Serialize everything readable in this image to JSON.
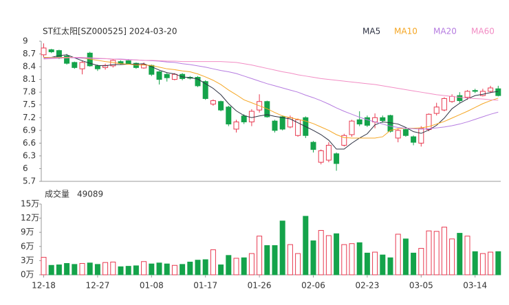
{
  "chart_data": [
    {
      "type": "candlestick",
      "title": "ST红太阳[SZ000525] 2024-03-20",
      "up_color": "#e8384f",
      "down_color": "#14a34a",
      "grid": false,
      "ylim": [
        5.7,
        9
      ],
      "yticks": [
        9,
        8.7,
        8.4,
        8.1,
        7.8,
        7.5,
        7.2,
        6.9,
        6.6,
        6.3,
        6,
        5.7
      ],
      "open": [
        8.68,
        8.8,
        8.78,
        8.65,
        8.5,
        8.35,
        8.72,
        8.42,
        8.38,
        8.42,
        8.52,
        8.54,
        8.48,
        8.37,
        8.43,
        8.28,
        8.22,
        8.1,
        8.22,
        8.15,
        8.15,
        8.05,
        7.52,
        7.58,
        7.45,
        6.93,
        7.24,
        7.1,
        7.38,
        7.58,
        7.12,
        7.22,
        6.98,
        6.78,
        7.2,
        6.62,
        6.15,
        6.2,
        6.35,
        6.55,
        6.8,
        7.15,
        7.2,
        7.1,
        7.2,
        7.25,
        6.72,
        6.92,
        6.75,
        6.6,
        6.92,
        7.3,
        7.38,
        7.58,
        7.72,
        7.68,
        7.84,
        7.72,
        7.82,
        7.88
      ],
      "high": [
        8.95,
        8.82,
        8.8,
        8.7,
        8.52,
        8.55,
        8.75,
        8.45,
        8.47,
        8.58,
        8.55,
        8.58,
        8.5,
        8.5,
        8.45,
        8.3,
        8.25,
        8.25,
        8.25,
        8.18,
        8.18,
        8.08,
        7.63,
        7.6,
        7.48,
        7.15,
        7.28,
        7.4,
        7.75,
        7.6,
        7.15,
        7.25,
        7.25,
        7.18,
        7.23,
        6.65,
        6.45,
        6.62,
        6.38,
        6.82,
        7.15,
        7.35,
        7.25,
        7.3,
        7.25,
        7.27,
        6.95,
        6.95,
        6.78,
        7.0,
        7.3,
        7.55,
        7.68,
        7.75,
        7.8,
        7.85,
        7.88,
        7.88,
        7.95,
        7.95
      ],
      "low": [
        8.62,
        8.72,
        8.58,
        8.45,
        8.35,
        8.22,
        8.4,
        8.3,
        8.33,
        8.38,
        8.45,
        8.45,
        8.35,
        8.35,
        8.18,
        7.98,
        8.05,
        8.08,
        8.08,
        8.1,
        7.92,
        7.62,
        7.48,
        7.35,
        7.0,
        6.85,
        7.05,
        7.0,
        7.32,
        7.2,
        6.85,
        6.9,
        6.95,
        6.75,
        6.72,
        6.38,
        6.1,
        6.15,
        5.95,
        6.52,
        6.75,
        7.0,
        6.98,
        6.95,
        7.08,
        6.85,
        6.62,
        6.75,
        6.55,
        6.52,
        6.88,
        7.25,
        7.35,
        7.55,
        7.55,
        7.62,
        7.78,
        7.7,
        7.78,
        7.7
      ],
      "close": [
        8.84,
        8.75,
        8.6,
        8.48,
        8.38,
        8.5,
        8.42,
        8.35,
        8.43,
        8.55,
        8.48,
        8.47,
        8.38,
        8.45,
        8.22,
        8.1,
        8.14,
        8.22,
        8.12,
        8.13,
        7.95,
        7.65,
        7.6,
        7.38,
        7.05,
        7.1,
        7.1,
        7.35,
        7.58,
        7.22,
        6.9,
        6.93,
        7.2,
        7.15,
        6.78,
        6.45,
        6.42,
        6.55,
        6.12,
        6.78,
        7.12,
        7.05,
        7.02,
        7.2,
        7.13,
        6.88,
        6.9,
        6.78,
        6.62,
        6.95,
        7.28,
        7.45,
        7.65,
        7.7,
        7.6,
        7.82,
        7.82,
        7.82,
        7.9,
        7.72
      ],
      "series": [
        {
          "name": "MA5",
          "color": "#2d3142",
          "values": [
            8.6,
            8.62,
            8.66,
            8.68,
            8.61,
            8.54,
            8.48,
            8.43,
            8.42,
            8.45,
            8.45,
            8.46,
            8.46,
            8.47,
            8.4,
            8.32,
            8.26,
            8.23,
            8.16,
            8.14,
            8.11,
            8.0,
            7.89,
            7.74,
            7.53,
            7.36,
            7.25,
            7.2,
            7.24,
            7.27,
            7.23,
            7.2,
            7.17,
            7.08,
            6.99,
            6.9,
            6.8,
            6.67,
            6.46,
            6.46,
            6.6,
            6.72,
            6.82,
            7.03,
            7.1,
            7.08,
            7.05,
            6.97,
            6.87,
            6.83,
            6.91,
            7.02,
            7.19,
            7.41,
            7.54,
            7.64,
            7.72,
            7.75,
            7.79,
            7.82
          ]
        },
        {
          "name": "MA10",
          "color": "#f5a623",
          "values": [
            8.62,
            8.62,
            8.62,
            8.62,
            8.62,
            8.6,
            8.58,
            8.55,
            8.52,
            8.5,
            8.47,
            8.46,
            8.44,
            8.44,
            8.43,
            8.39,
            8.35,
            8.33,
            8.3,
            8.28,
            8.23,
            8.16,
            8.08,
            7.98,
            7.85,
            7.74,
            7.62,
            7.55,
            7.48,
            7.41,
            7.32,
            7.24,
            7.2,
            7.16,
            7.12,
            7.06,
            6.98,
            6.9,
            6.8,
            6.73,
            6.72,
            6.72,
            6.72,
            6.72,
            6.75,
            6.9,
            6.94,
            6.95,
            6.95,
            6.96,
            6.99,
            7.05,
            7.11,
            7.19,
            7.27,
            7.35,
            7.44,
            7.53,
            7.6,
            7.66
          ]
        },
        {
          "name": "MA20",
          "color": "#b57be0",
          "values": [
            8.6,
            8.61,
            8.61,
            8.61,
            8.61,
            8.6,
            8.6,
            8.59,
            8.59,
            8.58,
            8.58,
            8.57,
            8.56,
            8.55,
            8.54,
            8.53,
            8.51,
            8.5,
            8.47,
            8.45,
            8.42,
            8.39,
            8.35,
            8.31,
            8.28,
            8.24,
            8.18,
            8.12,
            8.06,
            8.0,
            7.95,
            7.9,
            7.85,
            7.8,
            7.73,
            7.67,
            7.6,
            7.52,
            7.43,
            7.35,
            7.28,
            7.21,
            7.15,
            7.1,
            7.05,
            7.0,
            6.97,
            6.95,
            6.94,
            6.93,
            6.94,
            6.96,
            6.98,
            7.01,
            7.05,
            7.1,
            7.16,
            7.22,
            7.28,
            7.33
          ]
        },
        {
          "name": "MA60",
          "color": "#f28cc4",
          "values": [
            8.58,
            8.59,
            8.6,
            8.61,
            8.62,
            8.62,
            8.61,
            8.6,
            8.59,
            8.58,
            8.57,
            8.56,
            8.56,
            8.55,
            8.55,
            8.54,
            8.53,
            8.53,
            8.52,
            8.52,
            8.52,
            8.52,
            8.52,
            8.52,
            8.51,
            8.5,
            8.47,
            8.44,
            8.4,
            8.36,
            8.32,
            8.28,
            8.25,
            8.21,
            8.18,
            8.15,
            8.12,
            8.1,
            8.08,
            8.06,
            8.04,
            8.02,
            8.0,
            7.98,
            7.95,
            7.92,
            7.89,
            7.86,
            7.83,
            7.8,
            7.77,
            7.74,
            7.72,
            7.7,
            7.68,
            7.66,
            7.65,
            7.64,
            7.62,
            7.61
          ]
        }
      ]
    },
    {
      "type": "bar",
      "title": "成交量",
      "last_volume": 49089,
      "grid": false,
      "ylim": [
        0,
        15
      ],
      "yticks": [
        {
          "value": 15,
          "label": "15万"
        },
        {
          "value": 12,
          "label": "12万"
        },
        {
          "value": 9,
          "label": "9万"
        },
        {
          "value": 6,
          "label": "6万"
        },
        {
          "value": 3,
          "label": "3万"
        },
        {
          "value": 0,
          "label": "0万"
        }
      ],
      "categories": [
        "12-18",
        null,
        null,
        null,
        null,
        null,
        null,
        "12-27",
        null,
        null,
        null,
        null,
        null,
        null,
        "01-08",
        null,
        null,
        null,
        null,
        null,
        null,
        "01-17",
        null,
        null,
        null,
        null,
        null,
        null,
        "01-26",
        null,
        null,
        null,
        null,
        null,
        null,
        "02-06",
        null,
        null,
        null,
        null,
        null,
        null,
        "02-23",
        null,
        null,
        null,
        null,
        null,
        null,
        "03-05",
        null,
        null,
        null,
        null,
        null,
        null,
        "03-14",
        null,
        null,
        null
      ],
      "values": [
        3.7,
        2.0,
        2.1,
        2.4,
        2.2,
        2.4,
        2.5,
        2.2,
        2.6,
        2.7,
        1.7,
        1.8,
        1.9,
        2.8,
        2.3,
        2.5,
        2.3,
        2.0,
        2.2,
        2.7,
        3.1,
        3.2,
        5.3,
        2.1,
        4.1,
        3.5,
        3.6,
        4.5,
        8.2,
        6.2,
        6.2,
        11.4,
        6.4,
        4.5,
        12.4,
        7.2,
        9.4,
        8.3,
        8.7,
        6.4,
        6.6,
        6.8,
        4.6,
        4.8,
        4.2,
        3.6,
        8.6,
        7.6,
        4.6,
        5.6,
        9.3,
        9.2,
        10.1,
        7.6,
        8.8,
        8.2,
        4.9,
        4.5,
        4.8,
        4.9089
      ]
    }
  ]
}
